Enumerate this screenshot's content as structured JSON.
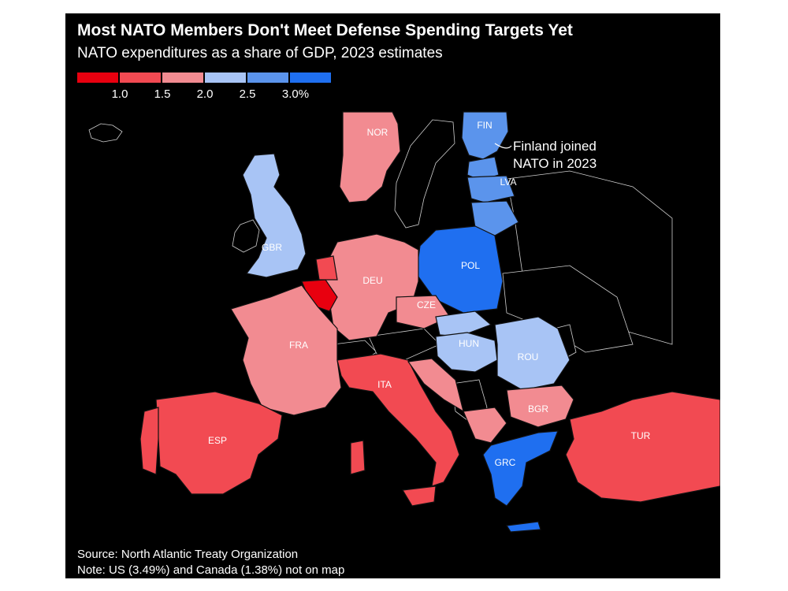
{
  "title": "Most NATO Members Don't Meet Defense Spending Targets Yet",
  "subtitle": "NATO expenditures as a share of GDP, 2023 estimates",
  "legend": {
    "colors": [
      "#e8000f",
      "#f24a52",
      "#f28b91",
      "#a8c4f5",
      "#5b94ec",
      "#1f6ff0"
    ],
    "ticks": [
      "1.0",
      "1.5",
      "2.0",
      "2.5",
      "3.0%"
    ]
  },
  "colors": {
    "background": "#000000",
    "non_nato": "#000000",
    "border": "#cfcfcf",
    "red_dark": "#e8000f",
    "red": "#f24a52",
    "red_light": "#f28b91",
    "blue_light": "#a8c4f5",
    "blue": "#5b94ec",
    "blue_dark": "#1f6ff0"
  },
  "countries": {
    "NOR": "NOR",
    "FIN": "FIN",
    "LVA": "LVA",
    "GBR": "GBR",
    "POL": "POL",
    "DEU": "DEU",
    "CZE": "CZE",
    "FRA": "FRA",
    "HUN": "HUN",
    "ROU": "ROU",
    "ITA": "ITA",
    "BGR": "BGR",
    "ESP": "ESP",
    "TUR": "TUR",
    "GRC": "GRC"
  },
  "annotation": {
    "line1": "Finland joined",
    "line2": "NATO in 2023"
  },
  "source": "Source: North Atlantic Treaty Organization",
  "note": "Note: US (3.49%) and Canada (1.38%) not on map"
}
